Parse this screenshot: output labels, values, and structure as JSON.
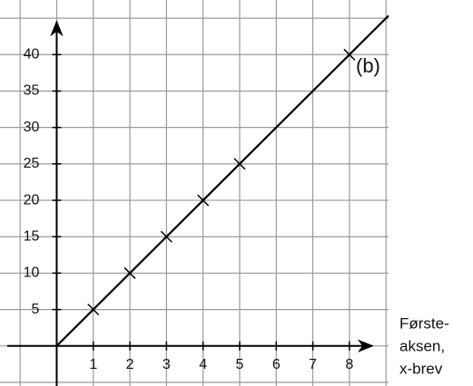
{
  "chart_data": {
    "type": "line",
    "annotation": "(b)",
    "x_label_lines": [
      "Første-",
      "aksen,",
      "x-brev"
    ],
    "xlim": [
      -1.55,
      9.07
    ],
    "ylim": [
      -5.5,
      47.5
    ],
    "xticks": [
      1,
      2,
      3,
      4,
      5,
      6,
      7,
      8
    ],
    "yticks": [
      5,
      10,
      15,
      20,
      25,
      30,
      35,
      40
    ],
    "xgrid": [
      -1,
      0,
      1,
      2,
      3,
      4,
      5,
      6,
      7,
      8,
      9
    ],
    "ygrid": [
      -5,
      0,
      5,
      10,
      15,
      20,
      25,
      30,
      35,
      40,
      45
    ],
    "grid": true,
    "series": [
      {
        "color": "#000000",
        "x": [
          0,
          9.07
        ],
        "values": [
          0,
          45.35
        ]
      },
      {
        "color": "#000000",
        "marker": "x",
        "x": [
          1,
          2,
          3,
          4,
          5,
          8
        ],
        "values": [
          5,
          10,
          15,
          20,
          25,
          40
        ]
      }
    ]
  }
}
